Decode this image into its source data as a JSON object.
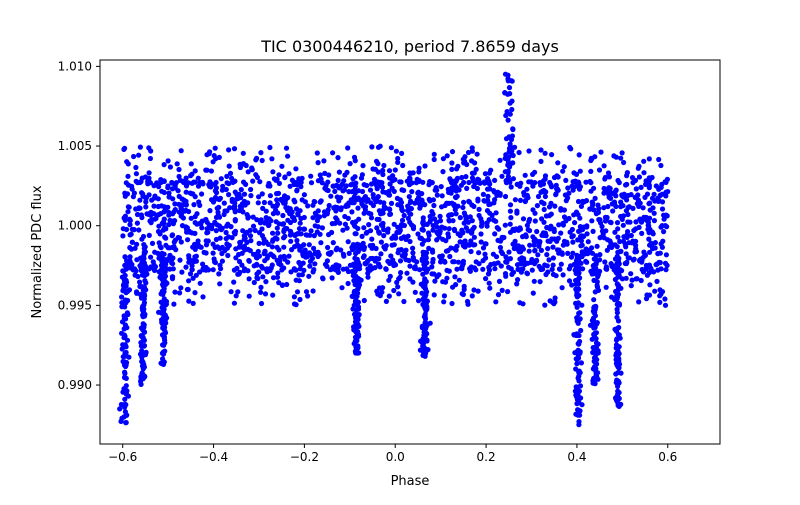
{
  "chart_data": {
    "type": "scatter",
    "title": "TIC 0300446210, period 7.8659 days",
    "xlabel": "Phase",
    "ylabel": "Normalized PDC flux",
    "xlim": [
      -0.65,
      0.715
    ],
    "ylim": [
      0.9863,
      1.0104
    ],
    "xticks": [
      -0.6,
      -0.4,
      -0.2,
      0.0,
      0.2,
      0.4,
      0.6
    ],
    "xtick_labels": [
      "−0.6",
      "−0.4",
      "−0.2",
      "0.0",
      "0.2",
      "0.4",
      "0.6"
    ],
    "yticks": [
      0.99,
      0.995,
      1.0,
      1.005,
      1.01
    ],
    "ytick_labels": [
      "0.990",
      "0.995",
      "1.000",
      "1.005",
      "1.010"
    ],
    "marker_color": "#0000ff",
    "grid": false,
    "series": [
      {
        "name": "PDC flux",
        "phase_range": [
          -0.6,
          0.6
        ],
        "band_center": 1.0,
        "band_halfwidth": 0.0027,
        "scatter_halfwidth": 0.005,
        "transits": [
          {
            "phase": -0.595,
            "min_flux": 0.9874
          },
          {
            "phase": -0.555,
            "min_flux": 0.99
          },
          {
            "phase": -0.51,
            "min_flux": 0.9912
          },
          {
            "phase": -0.085,
            "min_flux": 0.992
          },
          {
            "phase": 0.065,
            "min_flux": 0.9918
          },
          {
            "phase": 0.403,
            "min_flux": 0.9874
          },
          {
            "phase": 0.44,
            "min_flux": 0.99
          },
          {
            "phase": 0.49,
            "min_flux": 0.9885
          }
        ],
        "flare": {
          "phase": 0.252,
          "max_flux": 1.0097
        }
      }
    ]
  }
}
